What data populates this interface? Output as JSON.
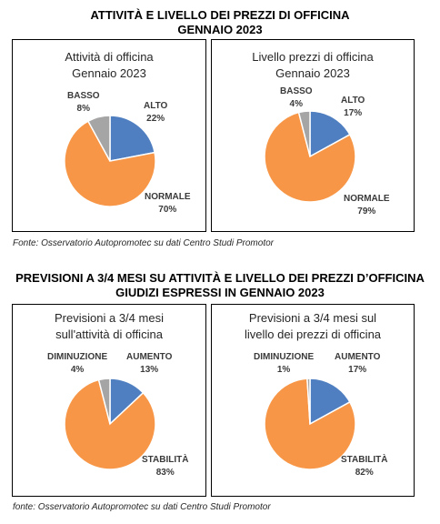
{
  "section1": {
    "title_line1": "ATTIVITÀ E LIVELLO DEI PREZZI DI OFFICINA",
    "title_line2": "GENNAIO 2023",
    "source": "Fonte: Osservatorio Autopromotec su dati Centro Studi Promotor"
  },
  "section2": {
    "title_line1": "PREVISIONI A 3/4 MESI SU ATTIVITÀ E LIVELLO DEI PREZZI D’OFFICINA",
    "title_line2": "GIUDIZI ESPRESSI IN GENNAIO 2023",
    "source": "fonte: Osservatorio Autopromotec su dati Centro Studi Promotor"
  },
  "colors": {
    "blue": "#4f7fc0",
    "orange": "#f79646",
    "gray": "#a5a5a5"
  },
  "chart_data": [
    {
      "type": "pie",
      "title_line1": "Attività di officina",
      "title_line2": "Gennaio 2023",
      "categories": [
        "ALTO",
        "NORMALE",
        "BASSO"
      ],
      "values": [
        22,
        70,
        8
      ],
      "value_labels": [
        "22%",
        "70%",
        "8%"
      ]
    },
    {
      "type": "pie",
      "title_line1": "Livello prezzi di officina",
      "title_line2": "Gennaio 2023",
      "categories": [
        "ALTO",
        "NORMALE",
        "BASSO"
      ],
      "values": [
        17,
        79,
        4
      ],
      "value_labels": [
        "17%",
        "79%",
        "4%"
      ]
    },
    {
      "type": "pie",
      "title_line1": "Previsioni a 3/4 mesi",
      "title_line2": "sull'attività di officina",
      "categories": [
        "AUMENTO",
        "STABILITÀ",
        "DIMINUZIONE"
      ],
      "values": [
        13,
        83,
        4
      ],
      "value_labels": [
        "13%",
        "83%",
        "4%"
      ]
    },
    {
      "type": "pie",
      "title_line1": "Previsioni a 3/4 mesi sul",
      "title_line2": "livello dei prezzi di officina",
      "categories": [
        "AUMENTO",
        "STABILITÀ",
        "DIMINUZIONE"
      ],
      "values": [
        17,
        82,
        1
      ],
      "value_labels": [
        "17%",
        "82%",
        "1%"
      ]
    }
  ]
}
